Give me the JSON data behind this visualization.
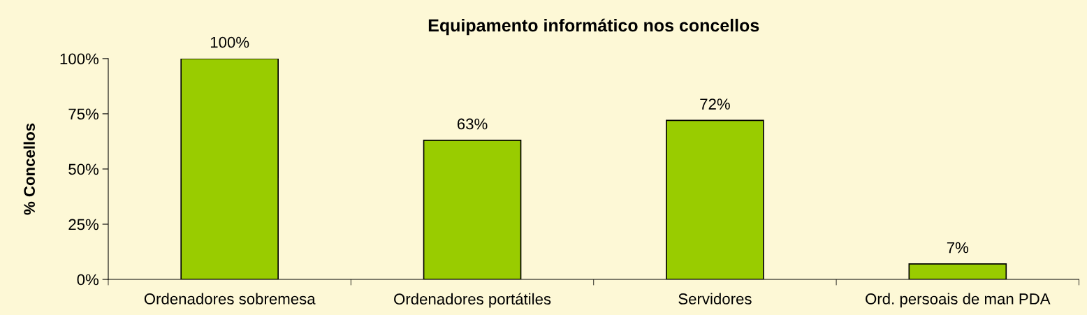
{
  "chart_data": {
    "type": "bar",
    "title": "Equipamento informático nos concellos",
    "ylabel": "% Concellos",
    "categories": [
      "Ordenadores sobremesa",
      "Ordenadores portátiles",
      "Servidores",
      "Ord. persoais de man PDA"
    ],
    "values": [
      100,
      63,
      72,
      7
    ],
    "value_labels": [
      "100%",
      "63%",
      "72%",
      "7%"
    ],
    "color": "#99cc00",
    "ylim": [
      0,
      100
    ],
    "yticks": [
      {
        "value": 0,
        "label": "0%"
      },
      {
        "value": 25,
        "label": "25%"
      },
      {
        "value": 50,
        "label": "50%"
      },
      {
        "value": 75,
        "label": "75%"
      },
      {
        "value": 100,
        "label": "100%"
      }
    ],
    "grid": false,
    "legend": false
  }
}
